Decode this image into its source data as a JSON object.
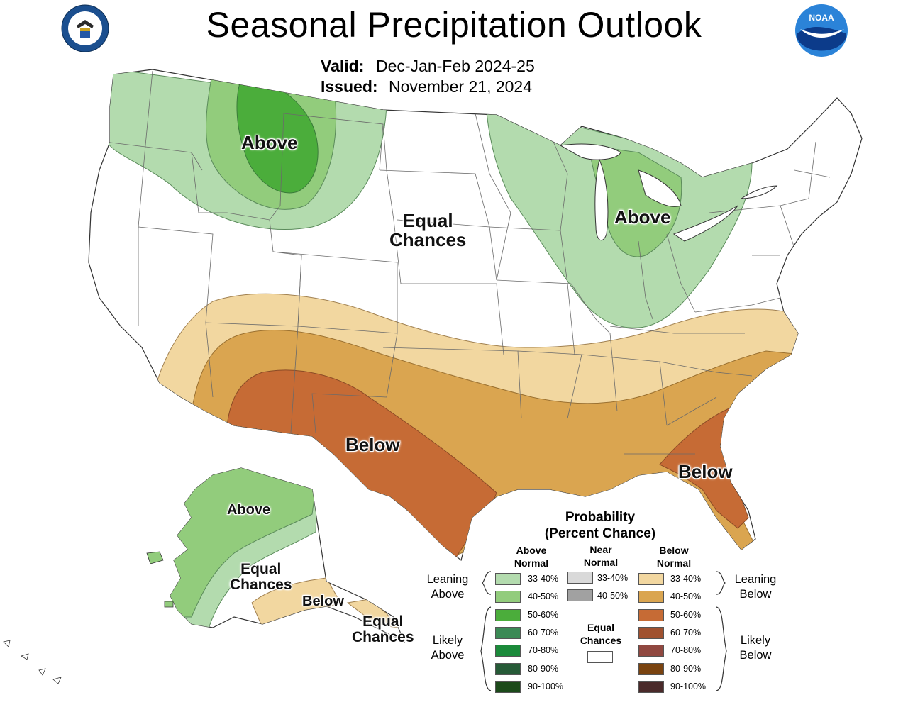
{
  "title": "Seasonal Precipitation Outlook",
  "valid_label": "Valid:",
  "valid_value": "Dec-Jan-Feb 2024-25",
  "issued_label": "Issued:",
  "issued_value": "November 21, 2024",
  "logos": {
    "left": "department-of-commerce-seal",
    "right": "noaa-logo",
    "right_text": "NOAA"
  },
  "map_labels": {
    "northwest": "Above",
    "great_lakes": "Above",
    "central": [
      "Equal",
      "Chances"
    ],
    "southwest": "Below",
    "southeast": "Below",
    "alaska_north": "Above",
    "alaska_middle": [
      "Equal",
      "Chances"
    ],
    "alaska_south": "Below",
    "alaska_aleutians": [
      "Equal",
      "Chances"
    ]
  },
  "legend": {
    "title": [
      "Probability",
      "(Percent Chance)"
    ],
    "above_header": [
      "Above",
      "Normal"
    ],
    "near_header": [
      "Near",
      "Normal"
    ],
    "below_header": [
      "Below",
      "Normal"
    ],
    "equal_header": [
      "Equal",
      "Chances"
    ],
    "leaning_above": [
      "Leaning",
      "Above"
    ],
    "likely_above": [
      "Likely",
      "Above"
    ],
    "leaning_below": [
      "Leaning",
      "Below"
    ],
    "likely_below": [
      "Likely",
      "Below"
    ],
    "above": [
      {
        "label": "33-40%",
        "color": "#b3dbae"
      },
      {
        "label": "40-50%",
        "color": "#92cc7c"
      },
      {
        "label": "50-60%",
        "color": "#4bad3b"
      },
      {
        "label": "60-70%",
        "color": "#3b8a55"
      },
      {
        "label": "70-80%",
        "color": "#1b8a3a"
      },
      {
        "label": "80-90%",
        "color": "#265a37"
      },
      {
        "label": "90-100%",
        "color": "#1c4a1a"
      }
    ],
    "near": [
      {
        "label": "33-40%",
        "color": "#d9d9d9"
      },
      {
        "label": "40-50%",
        "color": "#a1a1a1"
      }
    ],
    "below": [
      {
        "label": "33-40%",
        "color": "#f2d7a0"
      },
      {
        "label": "40-50%",
        "color": "#daa550"
      },
      {
        "label": "50-60%",
        "color": "#c66b35"
      },
      {
        "label": "60-70%",
        "color": "#a0512f"
      },
      {
        "label": "70-80%",
        "color": "#904840"
      },
      {
        "label": "80-90%",
        "color": "#7a4310"
      },
      {
        "label": "90-100%",
        "color": "#4a2a2a"
      }
    ],
    "equal_color": "#ffffff"
  }
}
